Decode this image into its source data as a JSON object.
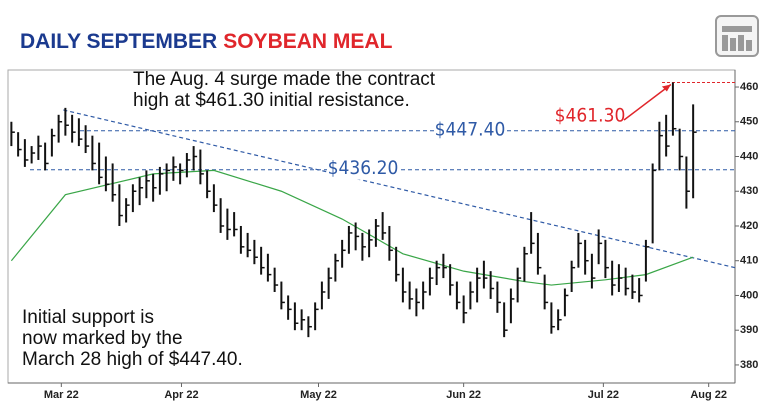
{
  "chart_data": {
    "type": "ohlc",
    "title": "DAILY SEPTEMBER",
    "title_highlight": "SOYBEAN MEAL",
    "annotations": [
      {
        "lines": [
          "The Aug. 4 surge made the contract",
          "high at $461.30 initial resistance."
        ]
      },
      {
        "lines": [
          "Initial support is",
          "now marked by the",
          "March 28 high of $447.40."
        ]
      }
    ],
    "levels": [
      {
        "value": 447.4,
        "label": "$447.40",
        "color": "#2f5aa6"
      },
      {
        "value": 436.2,
        "label": "$436.20",
        "color": "#2f5aa6"
      },
      {
        "value": 461.3,
        "label": "$461.30",
        "color": "#e0262b"
      }
    ],
    "high": [
      450,
      447,
      445,
      443,
      446,
      444,
      448,
      452,
      454,
      452,
      451,
      449,
      446,
      444,
      440,
      438,
      432,
      428,
      432,
      434,
      436,
      435,
      437,
      438,
      440,
      438,
      441,
      443,
      442,
      436,
      432,
      428,
      425,
      424,
      420,
      418,
      416,
      414,
      412,
      408,
      404,
      400,
      398,
      396,
      394,
      398,
      404,
      408,
      412,
      416,
      420,
      421,
      418,
      419,
      422,
      424,
      420,
      414,
      408,
      404,
      402,
      404,
      408,
      410,
      412,
      409,
      404,
      400,
      404,
      408,
      410,
      407,
      404,
      398,
      402,
      408,
      414,
      424,
      418,
      406,
      398,
      396,
      402,
      410,
      418,
      416,
      412,
      419,
      416,
      410,
      409,
      408,
      406,
      405,
      416,
      438,
      450,
      452,
      461.3,
      448,
      440,
      455
    ],
    "low": [
      443,
      440,
      437,
      438,
      439,
      436,
      440,
      444,
      446,
      444,
      443,
      441,
      436,
      432,
      430,
      427,
      420,
      421,
      424,
      426,
      428,
      427,
      429,
      430,
      433,
      432,
      434,
      436,
      432,
      428,
      424,
      418,
      416,
      417,
      412,
      411,
      409,
      406,
      404,
      401,
      396,
      393,
      390,
      390,
      388,
      390,
      396,
      399,
      404,
      408,
      412,
      413,
      410,
      411,
      414,
      416,
      410,
      404,
      398,
      396,
      394,
      396,
      400,
      403,
      405,
      400,
      396,
      392,
      396,
      398,
      402,
      399,
      395,
      388,
      392,
      398,
      404,
      412,
      406,
      396,
      389,
      390,
      394,
      401,
      408,
      406,
      402,
      409,
      405,
      400,
      401,
      400,
      399,
      398,
      404,
      415,
      436,
      440,
      446,
      436,
      425,
      428
    ],
    "close": [
      447,
      442,
      439,
      441,
      443,
      438,
      446,
      450,
      449,
      447,
      445,
      443,
      438,
      434,
      432,
      429,
      423,
      426,
      430,
      431,
      433,
      431,
      435,
      436,
      437,
      436,
      439,
      440,
      435,
      430,
      426,
      420,
      419,
      419,
      414,
      413,
      411,
      408,
      406,
      403,
      398,
      396,
      392,
      393,
      391,
      396,
      401,
      405,
      410,
      413,
      418,
      417,
      414,
      416,
      420,
      418,
      413,
      406,
      401,
      399,
      398,
      401,
      405,
      408,
      408,
      403,
      398,
      395,
      401,
      405,
      405,
      402,
      398,
      390,
      399,
      405,
      412,
      415,
      408,
      398,
      391,
      393,
      400,
      408,
      415,
      410,
      405,
      415,
      408,
      403,
      405,
      402,
      401,
      400,
      414,
      436,
      446,
      443,
      448,
      440,
      430,
      447
    ],
    "bar_color": "#111111",
    "moving_average": {
      "x": [
        0,
        8,
        21,
        30,
        40,
        49,
        58,
        67,
        76,
        80,
        88,
        94,
        101
      ],
      "values": [
        410,
        429,
        435,
        436,
        430,
        422,
        412,
        407,
        404,
        403,
        404.5,
        406,
        411
      ],
      "color": "#3aa648"
    },
    "trendline": {
      "x": [
        7.7,
        107.2
      ],
      "values": [
        453.4,
        408
      ],
      "color": "#2f5aa6"
    },
    "xlim": [
      -0.5,
      107.2
    ],
    "ylim": [
      374.8,
      464.9
    ],
    "xticks": [
      {
        "value": 7.4,
        "label": "Mar 22"
      },
      {
        "value": 25.2,
        "label": "Apr 22"
      },
      {
        "value": 45.5,
        "label": "May 22"
      },
      {
        "value": 67,
        "label": "Jun 22"
      },
      {
        "value": 87.7,
        "label": "Jul 22"
      },
      {
        "value": 103.3,
        "label": "Aug 22"
      }
    ],
    "yticks": [
      380,
      390,
      400,
      410,
      420,
      430,
      440,
      450,
      460
    ]
  }
}
